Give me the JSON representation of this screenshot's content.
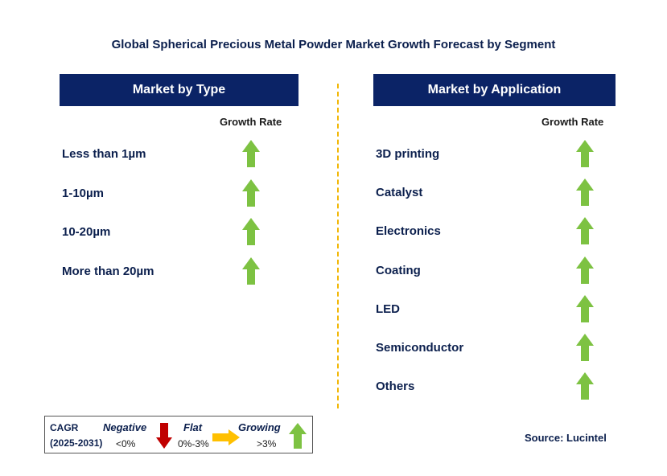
{
  "title": "Global Spherical Precious Metal Powder Market Growth Forecast by Segment",
  "colors": {
    "header_bg": "#0b2366",
    "growing": "#7dc242",
    "negative": "#c00000",
    "flat": "#ffc000",
    "divider": "#f2b705"
  },
  "left_panel": {
    "header": "Market by Type",
    "growth_label": "Growth Rate",
    "rows": [
      {
        "label": "Less than 1µm",
        "trend": "growing"
      },
      {
        "label": "1-10µm",
        "trend": "growing"
      },
      {
        "label": "10-20µm",
        "trend": "growing"
      },
      {
        "label": "More than 20µm",
        "trend": "growing"
      }
    ]
  },
  "right_panel": {
    "header": "Market by Application",
    "growth_label": "Growth Rate",
    "rows": [
      {
        "label": "3D printing",
        "trend": "growing"
      },
      {
        "label": "Catalyst",
        "trend": "growing"
      },
      {
        "label": "Electronics",
        "trend": "growing"
      },
      {
        "label": "Coating",
        "trend": "growing"
      },
      {
        "label": "LED",
        "trend": "growing"
      },
      {
        "label": "Semiconductor",
        "trend": "growing"
      },
      {
        "label": "Others",
        "trend": "growing"
      }
    ]
  },
  "legend": {
    "cagr": "CAGR",
    "period": "(2025-2031)",
    "negative_label": "Negative",
    "negative_range": "<0%",
    "flat_label": "Flat",
    "flat_range": "0%-3%",
    "growing_label": "Growing",
    "growing_range": ">3%"
  },
  "source": "Source: Lucintel"
}
